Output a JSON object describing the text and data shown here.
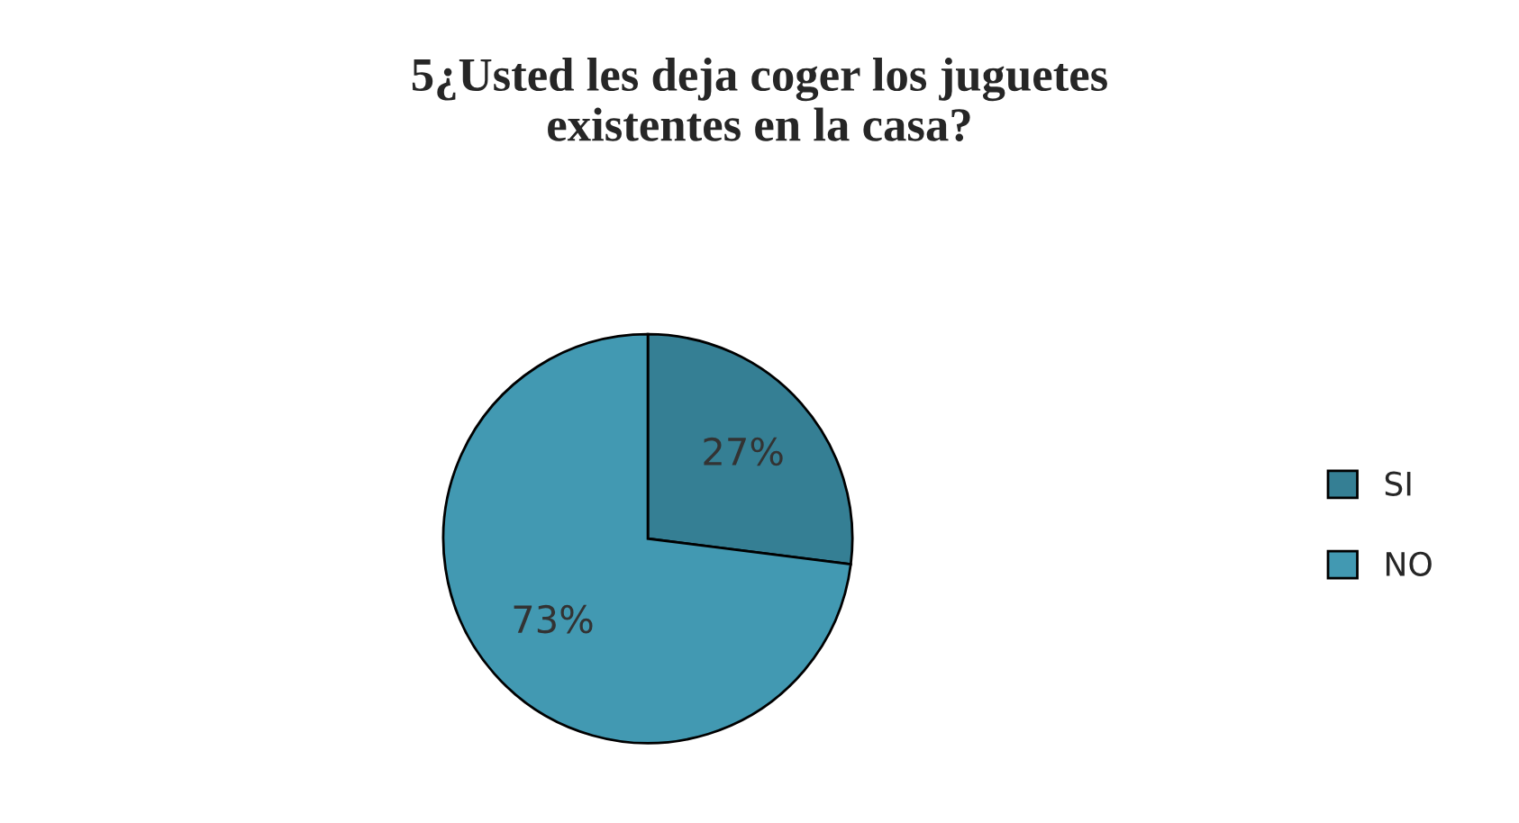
{
  "chart_data": {
    "type": "pie",
    "title": "5¿Usted les deja coger los juguetes\nexistentes en la casa?",
    "categories": [
      "SI",
      "NO"
    ],
    "values": [
      27,
      73
    ],
    "colors": [
      "#357f94",
      "#4299b2"
    ],
    "value_labels": [
      "27%",
      "73%"
    ],
    "legend": "right"
  }
}
